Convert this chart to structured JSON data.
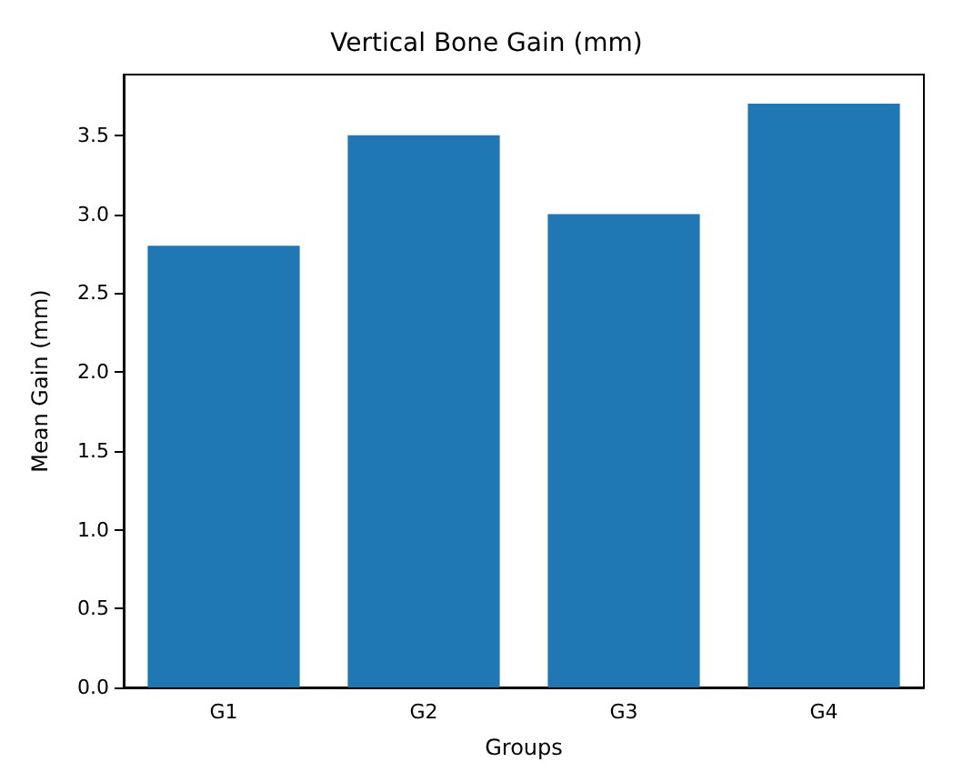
{
  "chart_data": {
    "type": "bar",
    "title": "Vertical Bone Gain (mm)",
    "xlabel": "Groups",
    "ylabel": "Mean Gain (mm)",
    "categories": [
      "G1",
      "G2",
      "G3",
      "G4"
    ],
    "values": [
      2.8,
      3.5,
      3.0,
      3.7
    ],
    "color": "#1f77b4",
    "ylim": [
      0,
      3.885
    ],
    "yticks": [
      {
        "value": 0,
        "label": "0.0"
      },
      {
        "value": 0.5,
        "label": "0.5"
      },
      {
        "value": 1,
        "label": "1.0"
      },
      {
        "value": 1.5,
        "label": "1.5"
      },
      {
        "value": 2,
        "label": "2.0"
      },
      {
        "value": 2.5,
        "label": "2.5"
      },
      {
        "value": 3,
        "label": "3.0"
      },
      {
        "value": 3.5,
        "label": "3.5"
      }
    ],
    "grid": false
  }
}
